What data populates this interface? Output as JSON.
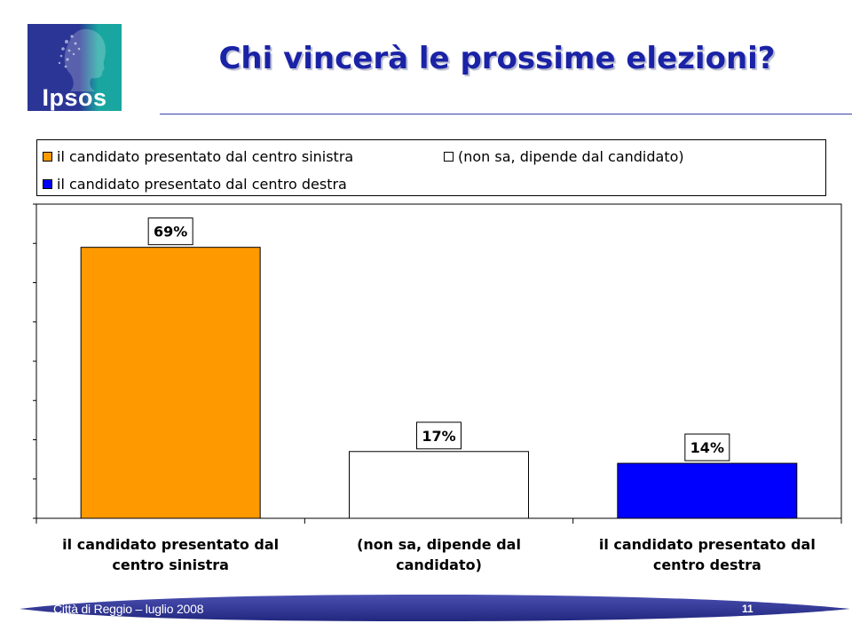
{
  "header": {
    "logo_text": "Ipsos",
    "title": "Chi vincerà le prossime elezioni?"
  },
  "colors": {
    "title": "#1a22a6",
    "logo_blue": "#2b3596",
    "logo_teal": "#1aa6a0",
    "footer_band": "#2b2f8f"
  },
  "chart_data": {
    "type": "bar",
    "title": "",
    "xlabel": "",
    "ylabel": "",
    "ylim": [
      0,
      80
    ],
    "grid": false,
    "legend_position": "top",
    "categories": [
      "il candidato presentato dal centro sinistra",
      "(non sa, dipende dal candidato)",
      "il candidato presentato dal centro destra"
    ],
    "category_lines": [
      [
        "il candidato presentato dal",
        "centro sinistra"
      ],
      [
        "(non sa, dipende dal",
        "candidato)"
      ],
      [
        "il candidato presentato dal",
        "centro destra"
      ]
    ],
    "values": [
      69,
      17,
      14
    ],
    "data_labels": [
      "69%",
      "17%",
      "14%"
    ],
    "colors": [
      "#ff9900",
      "#ffffff",
      "#0000ff"
    ],
    "legend": [
      {
        "label": "il candidato presentato dal centro sinistra",
        "color": "#ff9900"
      },
      {
        "label": "(non sa, dipende dal candidato)",
        "color": "#ffffff"
      },
      {
        "label": "il candidato presentato dal centro destra",
        "color": "#0000ff"
      }
    ]
  },
  "footer": {
    "text": "Città di Reggio – luglio 2008",
    "page": "11"
  }
}
